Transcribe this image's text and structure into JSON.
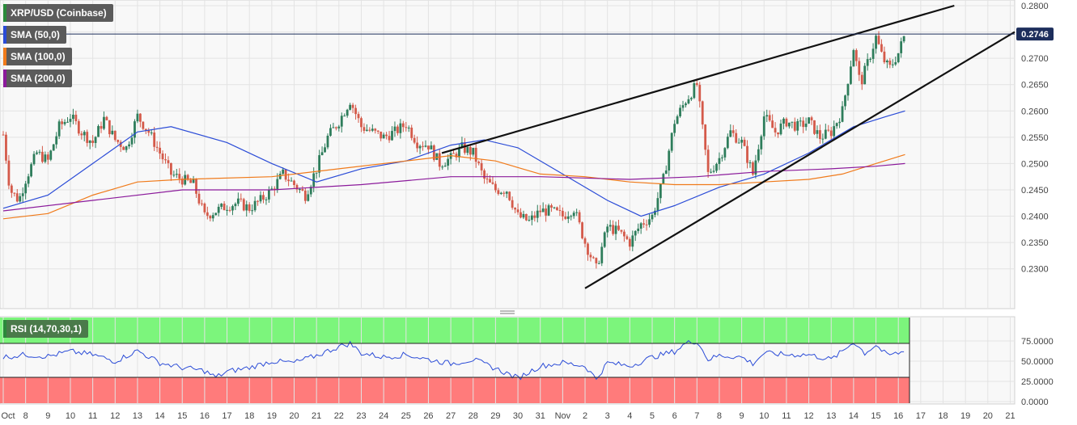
{
  "legend": {
    "symbol": "XRP/USD (Coinbase)",
    "sma50": "SMA (50,0)",
    "sma100": "SMA (100,0)",
    "sma200": "SMA (200,0)",
    "rsi": "RSI (14,70,30,1)"
  },
  "colors": {
    "up": "#2e7d5b",
    "down": "#d45a4a",
    "sma50": "#2a4bd7",
    "sma100": "#f07a1a",
    "sma200": "#8b1a9b",
    "rsi": "#2a4bd7",
    "overbought": "#7cf57c",
    "oversold": "#ff7b7b",
    "symbol_marker": "#2a8a3a"
  },
  "chart_data": {
    "type": "candlestick",
    "y_ticks": [
      "0.2800",
      "0.2750",
      "0.2700",
      "0.2650",
      "0.2600",
      "0.2550",
      "0.2500",
      "0.2450",
      "0.2400",
      "0.2350",
      "0.2300"
    ],
    "ylim": [
      0.2255,
      0.28
    ],
    "last_price": "0.2746",
    "last_price_value": 0.2746,
    "x_labels": [
      "Oct",
      "8",
      "9",
      "10",
      "11",
      "12",
      "13",
      "14",
      "15",
      "16",
      "17",
      "18",
      "19",
      "20",
      "21",
      "22",
      "23",
      "24",
      "25",
      "26",
      "27",
      "28",
      "29",
      "30",
      "31",
      "Nov",
      "2",
      "3",
      "4",
      "5",
      "6",
      "7",
      "8",
      "9",
      "10",
      "11",
      "12",
      "13",
      "14",
      "15",
      "16",
      "17",
      "18",
      "19",
      "20",
      "21"
    ],
    "x_day_index": [
      7,
      8,
      9,
      10,
      11,
      12,
      13,
      14,
      15,
      16,
      17,
      18,
      19,
      20,
      21,
      22,
      23,
      24,
      25,
      26,
      27,
      28,
      29,
      30,
      31,
      32,
      33,
      34,
      35,
      36,
      37,
      38,
      39,
      40,
      41,
      42,
      43,
      44,
      45,
      46,
      47,
      48,
      49,
      50,
      51,
      52
    ],
    "x_domain_days": [
      7,
      52.2
    ],
    "anchors": [
      {
        "t": 7.0,
        "p": 0.2555
      },
      {
        "t": 7.3,
        "p": 0.245
      },
      {
        "t": 7.7,
        "p": 0.243
      },
      {
        "t": 8.0,
        "p": 0.247
      },
      {
        "t": 8.5,
        "p": 0.252
      },
      {
        "t": 9.0,
        "p": 0.2505
      },
      {
        "t": 9.5,
        "p": 0.257
      },
      {
        "t": 10.0,
        "p": 0.259
      },
      {
        "t": 10.5,
        "p": 0.256
      },
      {
        "t": 11.0,
        "p": 0.254
      },
      {
        "t": 11.5,
        "p": 0.2585
      },
      {
        "t": 12.0,
        "p": 0.2545
      },
      {
        "t": 12.5,
        "p": 0.253
      },
      {
        "t": 13.0,
        "p": 0.259
      },
      {
        "t": 13.5,
        "p": 0.256
      },
      {
        "t": 14.0,
        "p": 0.252
      },
      {
        "t": 14.5,
        "p": 0.248
      },
      {
        "t": 15.0,
        "p": 0.247
      },
      {
        "t": 15.5,
        "p": 0.246
      },
      {
        "t": 16.0,
        "p": 0.24
      },
      {
        "t": 16.5,
        "p": 0.241
      },
      {
        "t": 17.0,
        "p": 0.242
      },
      {
        "t": 17.5,
        "p": 0.2425
      },
      {
        "t": 18.0,
        "p": 0.2415
      },
      {
        "t": 18.5,
        "p": 0.243
      },
      {
        "t": 19.0,
        "p": 0.245
      },
      {
        "t": 19.5,
        "p": 0.248
      },
      {
        "t": 20.0,
        "p": 0.246
      },
      {
        "t": 20.5,
        "p": 0.244
      },
      {
        "t": 21.0,
        "p": 0.249
      },
      {
        "t": 21.5,
        "p": 0.255
      },
      {
        "t": 22.0,
        "p": 0.258
      },
      {
        "t": 22.5,
        "p": 0.262
      },
      {
        "t": 23.0,
        "p": 0.257
      },
      {
        "t": 23.5,
        "p": 0.256
      },
      {
        "t": 24.0,
        "p": 0.255
      },
      {
        "t": 24.5,
        "p": 0.256
      },
      {
        "t": 25.0,
        "p": 0.2575
      },
      {
        "t": 25.5,
        "p": 0.254
      },
      {
        "t": 26.0,
        "p": 0.2535
      },
      {
        "t": 26.5,
        "p": 0.25
      },
      {
        "t": 27.0,
        "p": 0.251
      },
      {
        "t": 27.5,
        "p": 0.253
      },
      {
        "t": 28.0,
        "p": 0.252
      },
      {
        "t": 28.5,
        "p": 0.247
      },
      {
        "t": 29.0,
        "p": 0.245
      },
      {
        "t": 29.5,
        "p": 0.245
      },
      {
        "t": 30.0,
        "p": 0.24
      },
      {
        "t": 30.5,
        "p": 0.239
      },
      {
        "t": 31.0,
        "p": 0.241
      },
      {
        "t": 31.5,
        "p": 0.241
      },
      {
        "t": 32.0,
        "p": 0.24
      },
      {
        "t": 32.5,
        "p": 0.2415
      },
      {
        "t": 33.0,
        "p": 0.235
      },
      {
        "t": 33.5,
        "p": 0.23
      },
      {
        "t": 34.0,
        "p": 0.238
      },
      {
        "t": 34.5,
        "p": 0.237
      },
      {
        "t": 35.0,
        "p": 0.235
      },
      {
        "t": 35.5,
        "p": 0.2385
      },
      {
        "t": 36.0,
        "p": 0.24
      },
      {
        "t": 36.5,
        "p": 0.247
      },
      {
        "t": 37.0,
        "p": 0.258
      },
      {
        "t": 37.5,
        "p": 0.262
      },
      {
        "t": 38.0,
        "p": 0.265
      },
      {
        "t": 38.5,
        "p": 0.248
      },
      {
        "t": 39.0,
        "p": 0.251
      },
      {
        "t": 39.5,
        "p": 0.256
      },
      {
        "t": 40.0,
        "p": 0.254
      },
      {
        "t": 40.5,
        "p": 0.248
      },
      {
        "t": 41.0,
        "p": 0.259
      },
      {
        "t": 41.5,
        "p": 0.256
      },
      {
        "t": 42.0,
        "p": 0.258
      },
      {
        "t": 42.5,
        "p": 0.257
      },
      {
        "t": 43.0,
        "p": 0.258
      },
      {
        "t": 43.5,
        "p": 0.255
      },
      {
        "t": 44.0,
        "p": 0.256
      },
      {
        "t": 44.5,
        "p": 0.26
      },
      {
        "t": 45.0,
        "p": 0.272
      },
      {
        "t": 45.3,
        "p": 0.265
      },
      {
        "t": 45.7,
        "p": 0.27
      },
      {
        "t": 46.0,
        "p": 0.274
      },
      {
        "t": 46.3,
        "p": 0.27
      },
      {
        "t": 46.6,
        "p": 0.268
      },
      {
        "t": 47.0,
        "p": 0.271
      },
      {
        "t": 47.3,
        "p": 0.2746
      }
    ],
    "series": [
      {
        "name": "SMA (50,0)",
        "points": [
          {
            "t": 7,
            "p": 0.2415
          },
          {
            "t": 9,
            "p": 0.244
          },
          {
            "t": 11,
            "p": 0.25
          },
          {
            "t": 13,
            "p": 0.256
          },
          {
            "t": 14.5,
            "p": 0.257
          },
          {
            "t": 17,
            "p": 0.254
          },
          {
            "t": 19,
            "p": 0.25
          },
          {
            "t": 21,
            "p": 0.2465
          },
          {
            "t": 23,
            "p": 0.249
          },
          {
            "t": 25,
            "p": 0.2505
          },
          {
            "t": 27,
            "p": 0.2535
          },
          {
            "t": 28.5,
            "p": 0.2545
          },
          {
            "t": 30,
            "p": 0.253
          },
          {
            "t": 32,
            "p": 0.248
          },
          {
            "t": 34,
            "p": 0.243
          },
          {
            "t": 35.5,
            "p": 0.24
          },
          {
            "t": 37,
            "p": 0.242
          },
          {
            "t": 39,
            "p": 0.2455
          },
          {
            "t": 41,
            "p": 0.248
          },
          {
            "t": 43,
            "p": 0.252
          },
          {
            "t": 45,
            "p": 0.257
          },
          {
            "t": 46.5,
            "p": 0.259
          },
          {
            "t": 47.3,
            "p": 0.26
          }
        ]
      },
      {
        "name": "SMA (100,0)",
        "points": [
          {
            "t": 7,
            "p": 0.2395
          },
          {
            "t": 9,
            "p": 0.2405
          },
          {
            "t": 11,
            "p": 0.244
          },
          {
            "t": 13,
            "p": 0.2465
          },
          {
            "t": 15,
            "p": 0.247
          },
          {
            "t": 19,
            "p": 0.2475
          },
          {
            "t": 22,
            "p": 0.249
          },
          {
            "t": 25,
            "p": 0.2505
          },
          {
            "t": 27,
            "p": 0.2515
          },
          {
            "t": 29,
            "p": 0.2505
          },
          {
            "t": 31,
            "p": 0.248
          },
          {
            "t": 33,
            "p": 0.2475
          },
          {
            "t": 35,
            "p": 0.2465
          },
          {
            "t": 37,
            "p": 0.246
          },
          {
            "t": 39,
            "p": 0.246
          },
          {
            "t": 41,
            "p": 0.2465
          },
          {
            "t": 43,
            "p": 0.247
          },
          {
            "t": 44.5,
            "p": 0.248
          },
          {
            "t": 46,
            "p": 0.25
          },
          {
            "t": 47.3,
            "p": 0.2517
          }
        ]
      },
      {
        "name": "SMA (200,0)",
        "points": [
          {
            "t": 7,
            "p": 0.241
          },
          {
            "t": 11,
            "p": 0.243
          },
          {
            "t": 15,
            "p": 0.245
          },
          {
            "t": 19,
            "p": 0.245
          },
          {
            "t": 23,
            "p": 0.246
          },
          {
            "t": 27,
            "p": 0.2475
          },
          {
            "t": 31,
            "p": 0.2475
          },
          {
            "t": 35,
            "p": 0.247
          },
          {
            "t": 38,
            "p": 0.2475
          },
          {
            "t": 41,
            "p": 0.2485
          },
          {
            "t": 44,
            "p": 0.249
          },
          {
            "t": 46,
            "p": 0.2495
          },
          {
            "t": 47.3,
            "p": 0.25
          }
        ]
      }
    ],
    "trendlines": [
      {
        "from": {
          "t": 26.6,
          "p": 0.252
        },
        "to": {
          "t": 49.5,
          "p": 0.28
        }
      },
      {
        "from": {
          "t": 33.0,
          "p": 0.2263
        },
        "to": {
          "t": 52.2,
          "p": 0.275
        }
      }
    ],
    "rsi": {
      "y_ticks": [
        "75.0000",
        "50.0000",
        "25.0000",
        "0.0000"
      ],
      "ylim": [
        0,
        100
      ],
      "overbought": 70,
      "oversold": 30,
      "points": [
        {
          "t": 7,
          "p": 55
        },
        {
          "t": 8,
          "p": 58
        },
        {
          "t": 9,
          "p": 56
        },
        {
          "t": 10,
          "p": 62
        },
        {
          "t": 11,
          "p": 58
        },
        {
          "t": 12,
          "p": 50
        },
        {
          "t": 13,
          "p": 63
        },
        {
          "t": 14,
          "p": 48
        },
        {
          "t": 15,
          "p": 42
        },
        {
          "t": 16,
          "p": 38
        },
        {
          "t": 16.5,
          "p": 30
        },
        {
          "t": 17,
          "p": 37
        },
        {
          "t": 18,
          "p": 42
        },
        {
          "t": 19,
          "p": 50
        },
        {
          "t": 20,
          "p": 48
        },
        {
          "t": 21,
          "p": 57
        },
        {
          "t": 22,
          "p": 68
        },
        {
          "t": 22.5,
          "p": 72
        },
        {
          "t": 23,
          "p": 60
        },
        {
          "t": 24,
          "p": 55
        },
        {
          "t": 25,
          "p": 58
        },
        {
          "t": 26,
          "p": 52
        },
        {
          "t": 27,
          "p": 47
        },
        {
          "t": 28,
          "p": 52
        },
        {
          "t": 29,
          "p": 41
        },
        {
          "t": 30,
          "p": 29
        },
        {
          "t": 31,
          "p": 44
        },
        {
          "t": 32,
          "p": 48
        },
        {
          "t": 33,
          "p": 44
        },
        {
          "t": 33.5,
          "p": 28
        },
        {
          "t": 34,
          "p": 48
        },
        {
          "t": 35,
          "p": 44
        },
        {
          "t": 36,
          "p": 55
        },
        {
          "t": 37,
          "p": 62
        },
        {
          "t": 37.5,
          "p": 72
        },
        {
          "t": 38,
          "p": 75
        },
        {
          "t": 38.5,
          "p": 52
        },
        {
          "t": 39,
          "p": 57
        },
        {
          "t": 40,
          "p": 55
        },
        {
          "t": 40.5,
          "p": 47
        },
        {
          "t": 41,
          "p": 60
        },
        {
          "t": 42,
          "p": 58
        },
        {
          "t": 43,
          "p": 58
        },
        {
          "t": 44,
          "p": 52
        },
        {
          "t": 44.5,
          "p": 62
        },
        {
          "t": 45,
          "p": 74
        },
        {
          "t": 45.5,
          "p": 60
        },
        {
          "t": 46,
          "p": 70
        },
        {
          "t": 46.5,
          "p": 57
        },
        {
          "t": 47.3,
          "p": 62
        }
      ]
    }
  }
}
